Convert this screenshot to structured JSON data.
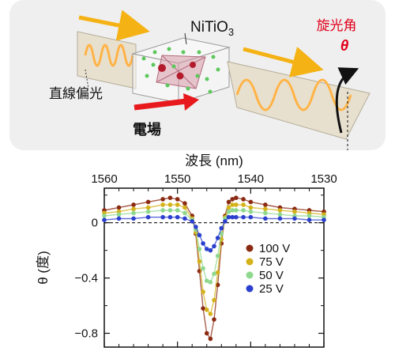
{
  "illustration": {
    "crystal_label": "NiTiO",
    "crystal_subscript": "3",
    "rotation_label": "旋光角",
    "theta_symbol": "θ",
    "linear_polarization_label": "直線偏光",
    "field_label": "電場",
    "colors": {
      "beam_arrow": "#f5b214",
      "field_arrow": "#e8191c",
      "rotation_text": "#e0001a",
      "wave": "#ffb347"
    },
    "icons": [
      "light-propagation-arrow-icon",
      "electric-field-arrow-icon",
      "rotation-arrow-icon"
    ]
  },
  "chart_data": {
    "type": "scatter",
    "title": "",
    "xlabel": "波長 (nm)",
    "ylabel": "θ (度)",
    "x_axis_position": "top",
    "x_reversed": true,
    "xlim": [
      1560,
      1530
    ],
    "ylim": [
      -0.9,
      0.25
    ],
    "xticks": [
      "1560",
      "1550",
      "1540",
      "1530"
    ],
    "yticks": [
      "0",
      "−0.4",
      "−0.8"
    ],
    "legend_position": "right",
    "zero_dashed_line": true,
    "fit_curves_shown": true,
    "x": [
      1560,
      1558,
      1556,
      1554,
      1552,
      1551,
      1550,
      1549,
      1548,
      1547.5,
      1547,
      1546.5,
      1546,
      1545.5,
      1545,
      1544.5,
      1544,
      1543.5,
      1543,
      1542.5,
      1542,
      1541,
      1540,
      1538,
      1536,
      1534,
      1532,
      1530
    ],
    "series": [
      {
        "name": "100 V",
        "color": "#8b2a12",
        "values": [
          0.09,
          0.11,
          0.13,
          0.15,
          0.17,
          0.18,
          0.17,
          0.14,
          0.05,
          -0.08,
          -0.35,
          -0.62,
          -0.8,
          -0.84,
          -0.7,
          -0.45,
          -0.15,
          0.05,
          0.15,
          0.17,
          0.18,
          0.17,
          0.15,
          0.13,
          0.11,
          0.1,
          0.09,
          0.08
        ]
      },
      {
        "name": "75 V",
        "color": "#d4b21a",
        "values": [
          0.07,
          0.08,
          0.1,
          0.11,
          0.13,
          0.13,
          0.13,
          0.11,
          0.03,
          -0.07,
          -0.28,
          -0.5,
          -0.63,
          -0.66,
          -0.56,
          -0.36,
          -0.12,
          0.04,
          0.11,
          0.13,
          0.13,
          0.13,
          0.11,
          0.1,
          0.09,
          0.08,
          0.07,
          0.06
        ]
      },
      {
        "name": "50 V",
        "color": "#8fd88f",
        "values": [
          0.05,
          0.06,
          0.07,
          0.08,
          0.09,
          0.09,
          0.09,
          0.07,
          0.02,
          -0.05,
          -0.19,
          -0.33,
          -0.42,
          -0.43,
          -0.37,
          -0.24,
          -0.08,
          0.03,
          0.08,
          0.09,
          0.09,
          0.09,
          0.08,
          0.07,
          0.06,
          0.05,
          0.05,
          0.04
        ]
      },
      {
        "name": "25 V",
        "color": "#2b3fcf",
        "values": [
          0.02,
          0.03,
          0.03,
          0.04,
          0.04,
          0.04,
          0.04,
          0.03,
          0.01,
          -0.03,
          -0.09,
          -0.15,
          -0.19,
          -0.2,
          -0.17,
          -0.11,
          -0.04,
          0.01,
          0.04,
          0.04,
          0.04,
          0.04,
          0.04,
          0.03,
          0.03,
          0.03,
          0.02,
          0.02
        ]
      }
    ]
  }
}
